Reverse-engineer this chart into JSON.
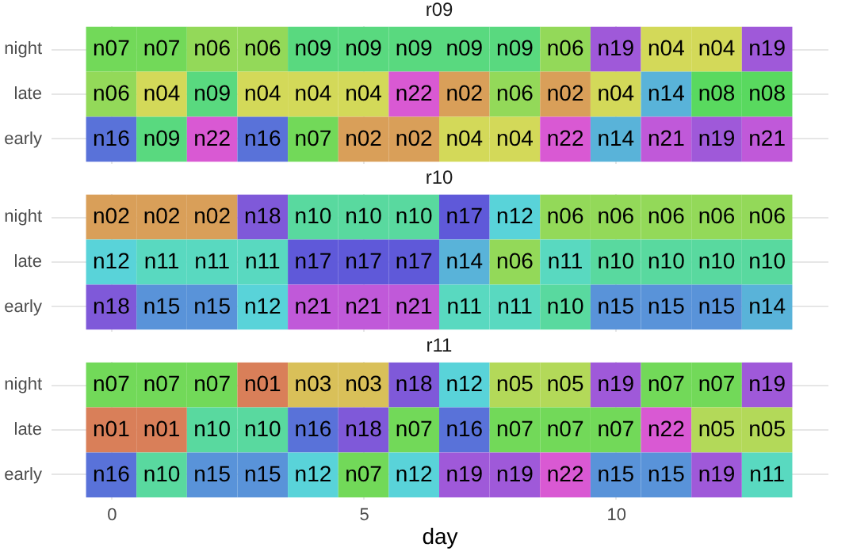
{
  "chart_data": [
    {
      "type": "heatmap",
      "title": "r09",
      "x": [
        0,
        1,
        2,
        3,
        4,
        5,
        6,
        7,
        8,
        9,
        10,
        11,
        12,
        13
      ],
      "xlim": [
        -1.2,
        14.2
      ],
      "xticks": [
        0,
        5,
        10
      ],
      "y_categories": [
        "night",
        "late",
        "early"
      ],
      "grid": true,
      "tick_labels": "y",
      "cells": [
        [
          "n07",
          "n07",
          "n06",
          "n06",
          "n09",
          "n09",
          "n09",
          "n09",
          "n09",
          "n06",
          "n19",
          "n04",
          "n04",
          "n19"
        ],
        [
          "n06",
          "n04",
          "n09",
          "n04",
          "n04",
          "n04",
          "n22",
          "n02",
          "n06",
          "n02",
          "n04",
          "n14",
          "n08",
          "n08"
        ],
        [
          "n16",
          "n09",
          "n22",
          "n16",
          "n07",
          "n02",
          "n02",
          "n04",
          "n04",
          "n22",
          "n14",
          "n21",
          "n19",
          "n21"
        ]
      ]
    },
    {
      "type": "heatmap",
      "title": "r10",
      "x": [
        0,
        1,
        2,
        3,
        4,
        5,
        6,
        7,
        8,
        9,
        10,
        11,
        12,
        13
      ],
      "xlim": [
        -1.2,
        14.2
      ],
      "xticks": [
        0,
        5,
        10
      ],
      "y_categories": [
        "night",
        "late",
        "early"
      ],
      "grid": true,
      "tick_labels": "y",
      "cells": [
        [
          "n02",
          "n02",
          "n02",
          "n18",
          "n10",
          "n10",
          "n10",
          "n17",
          "n12",
          "n06",
          "n06",
          "n06",
          "n06",
          "n06"
        ],
        [
          "n12",
          "n11",
          "n11",
          "n11",
          "n17",
          "n17",
          "n17",
          "n14",
          "n06",
          "n11",
          "n10",
          "n10",
          "n10",
          "n10"
        ],
        [
          "n18",
          "n15",
          "n15",
          "n12",
          "n21",
          "n21",
          "n21",
          "n11",
          "n11",
          "n10",
          "n15",
          "n15",
          "n15",
          "n14"
        ]
      ]
    },
    {
      "type": "heatmap",
      "title": "r11",
      "x": [
        0,
        1,
        2,
        3,
        4,
        5,
        6,
        7,
        8,
        9,
        10,
        11,
        12,
        13
      ],
      "xlim": [
        -1.2,
        14.2
      ],
      "xticks": [
        0,
        5,
        10
      ],
      "xlabel": "day",
      "y_categories": [
        "night",
        "late",
        "early"
      ],
      "grid": true,
      "cells": [
        [
          "n07",
          "n07",
          "n07",
          "n01",
          "n03",
          "n03",
          "n18",
          "n12",
          "n05",
          "n05",
          "n19",
          "n07",
          "n07",
          "n19"
        ],
        [
          "n01",
          "n01",
          "n10",
          "n10",
          "n16",
          "n18",
          "n07",
          "n16",
          "n07",
          "n07",
          "n07",
          "n22",
          "n05",
          "n05"
        ],
        [
          "n16",
          "n10",
          "n15",
          "n15",
          "n12",
          "n07",
          "n12",
          "n19",
          "n19",
          "n22",
          "n15",
          "n15",
          "n19",
          "n11"
        ]
      ]
    }
  ]
}
